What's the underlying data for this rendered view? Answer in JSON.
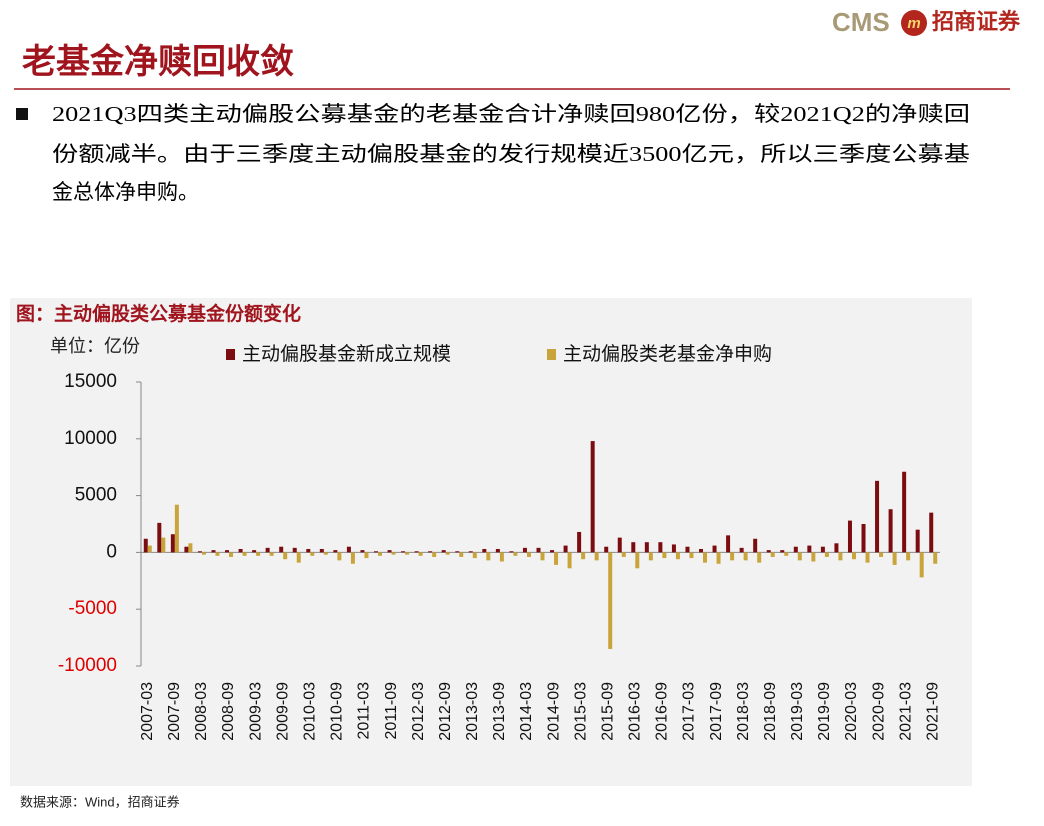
{
  "header": {
    "logo_text": "CMS",
    "logo_icon": "m",
    "brand": "招商证券",
    "title": "老基金净赎回收敛"
  },
  "bullet": {
    "lines": [
      "2021Q3四类主动偏股公募基金的老基金合计净赎回980亿份，较2021Q2的净赎回",
      "份额减半。由于三季度主动偏股基金的发行规模近3500亿元，所以三季度公募基",
      "金总体净申购。"
    ]
  },
  "chart_data": {
    "type": "bar",
    "title": "图：主动偏股类公募基金份额变化",
    "unit": "单位：亿份",
    "categories": [
      "2007-03",
      null,
      "2007-09",
      null,
      "2008-03",
      null,
      "2008-09",
      null,
      "2009-03",
      null,
      "2009-09",
      null,
      "2010-03",
      null,
      "2010-09",
      null,
      "2011-03",
      null,
      "2011-09",
      null,
      "2012-03",
      null,
      "2012-09",
      null,
      "2013-03",
      null,
      "2013-09",
      null,
      "2014-03",
      null,
      "2014-09",
      null,
      "2015-03",
      null,
      "2015-09",
      null,
      "2016-03",
      null,
      "2016-09",
      null,
      "2017-03",
      null,
      "2017-09",
      null,
      "2018-03",
      null,
      "2018-09",
      null,
      "2019-03",
      null,
      "2019-09",
      null,
      "2020-03",
      null,
      "2020-09",
      null,
      "2021-03",
      null,
      "2021-09"
    ],
    "series": [
      {
        "name": "主动偏股基金新成立规模",
        "color": "#7b0c10",
        "values": [
          1200,
          2600,
          1600,
          500,
          100,
          200,
          200,
          300,
          200,
          400,
          500,
          400,
          300,
          300,
          200,
          500,
          200,
          100,
          200,
          100,
          100,
          100,
          200,
          100,
          100,
          300,
          300,
          100,
          400,
          400,
          200,
          600,
          1800,
          9800,
          500,
          1300,
          900,
          900,
          900,
          700,
          500,
          300,
          600,
          1500,
          400,
          1200,
          200,
          200,
          500,
          600,
          500,
          800,
          2800,
          2500,
          6300,
          3800,
          7100,
          2000,
          3500
        ]
      },
      {
        "name": "主动偏股类老基金净申购",
        "color": "#c9a43a",
        "values": [
          600,
          1300,
          4200,
          800,
          -200,
          -300,
          -400,
          -300,
          -300,
          -300,
          -600,
          -900,
          -300,
          -200,
          -700,
          -1000,
          -500,
          -300,
          -200,
          -200,
          -300,
          -400,
          -200,
          -400,
          -500,
          -700,
          -800,
          -300,
          -400,
          -700,
          -1100,
          -1400,
          -600,
          -700,
          -8500,
          -400,
          -1400,
          -700,
          -500,
          -600,
          -500,
          -900,
          -1000,
          -700,
          -700,
          -900,
          -400,
          -300,
          -700,
          -800,
          -400,
          -700,
          -600,
          -900,
          -400,
          -1100,
          -700,
          -2200,
          -1000
        ]
      }
    ],
    "ylim": [
      -10000,
      15000
    ],
    "yticks": [
      -10000,
      -5000,
      0,
      5000,
      10000,
      15000
    ],
    "negative_tick_color": "#e00000",
    "legend": "top",
    "grid": false
  },
  "source": "数据来源：Wind，招商证券"
}
